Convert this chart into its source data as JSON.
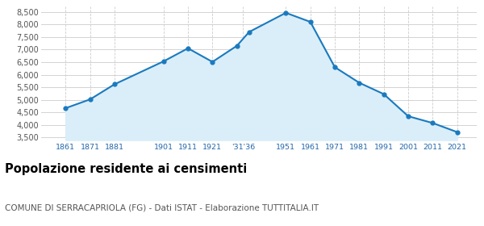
{
  "years": [
    1861,
    1871,
    1881,
    1901,
    1911,
    1921,
    1931,
    1936,
    1951,
    1961,
    1971,
    1981,
    1991,
    2001,
    2011,
    2021
  ],
  "population": [
    4670,
    5020,
    5620,
    6530,
    7050,
    6510,
    7150,
    7700,
    8460,
    8100,
    6300,
    5680,
    5230,
    4350,
    4080,
    3720
  ],
  "line_color": "#1a7abf",
  "fill_color": "#daeef9",
  "marker_color": "#1a7abf",
  "background_color": "#ffffff",
  "grid_color": "#cccccc",
  "ylim": [
    3400,
    8700
  ],
  "yticks": [
    3500,
    4000,
    4500,
    5000,
    5500,
    6000,
    6500,
    7000,
    7500,
    8000,
    8500
  ],
  "xtick_positions": [
    1861,
    1871,
    1881,
    1901,
    1911,
    1921,
    1933.5,
    1951,
    1961,
    1971,
    1981,
    1991,
    2001,
    2011,
    2021
  ],
  "xtick_labels": [
    "1861",
    "1871",
    "1881",
    "1901",
    "1911",
    "1921",
    "'31'36",
    "1951",
    "1961",
    "1971",
    "1981",
    "1991",
    "2001",
    "2011",
    "2021"
  ],
  "title": "Popolazione residente ai censimenti",
  "subtitle": "COMUNE DI SERRACAPRIOLA (FG) - Dati ISTAT - Elaborazione TUTTITALIA.IT",
  "title_fontsize": 10.5,
  "subtitle_fontsize": 7.5,
  "xlim": [
    1851,
    2029
  ]
}
